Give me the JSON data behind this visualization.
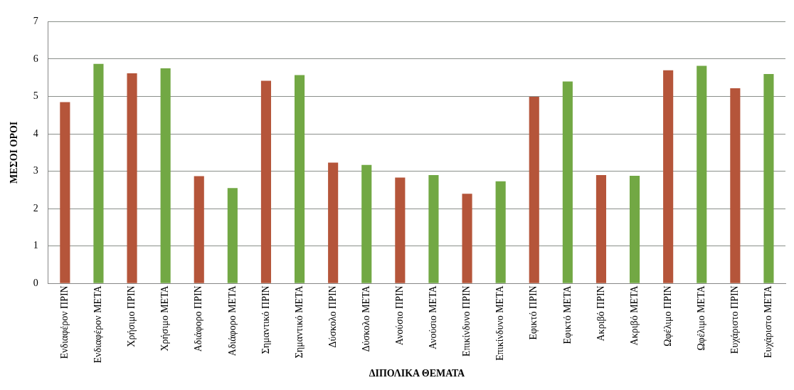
{
  "chart_data": {
    "type": "bar",
    "xlabel": "ΔΙΠΟΛΙΚΑ ΘΕΜΑΤΑ",
    "ylabel": "ΜΕΣΟΙ ΟΡΟΙ",
    "categories": [
      "Ενδιαφέρον ΠΡΙΝ",
      "Ενδιαφέρον ΜΕΤΑ",
      "Χρήσιμο ΠΡΙΝ",
      "Χρήσιμο ΜΕΤΑ",
      "Αδιάφορο ΠΡΙΝ",
      "Αδιάφορο ΜΕΤΑ",
      "Σημαντικό ΠΡΙΝ",
      "Σημαντικό ΜΕΤΑ",
      "Δύσκολο ΠΡΙΝ",
      "Δύσκολο ΜΕΤΑ",
      "Ανούσιο ΠΡΙΝ",
      "Ανούσιο ΜΕΤΑ",
      "Επικίνδυνο ΠΡΙΝ",
      "Επικίνδυνο ΜΕΤΑ",
      "Εφικτό ΠΡΙΝ",
      "Εφικτό ΜΕΤΑ",
      "Ακριβό ΠΡΙΝ",
      "Ακριβό ΜΕΤΑ",
      "Ωφέλιμο ΠΡΙΝ",
      "Ωφέλιμο ΜΕΤΑ",
      "Ευχάριστο ΠΡΙΝ",
      "Ευχάριστο ΜΕΤΑ"
    ],
    "values": [
      4.85,
      5.87,
      5.62,
      5.75,
      2.87,
      2.55,
      5.42,
      5.57,
      3.23,
      3.17,
      2.83,
      2.9,
      2.4,
      2.73,
      4.99,
      5.4,
      2.9,
      2.88,
      5.7,
      5.82,
      5.22,
      5.6
    ],
    "colors": [
      "#b5553a",
      "#72a844",
      "#b5553a",
      "#72a844",
      "#b5553a",
      "#72a844",
      "#b5553a",
      "#72a844",
      "#b5553a",
      "#72a844",
      "#b5553a",
      "#72a844",
      "#b5553a",
      "#72a844",
      "#b5553a",
      "#72a844",
      "#b5553a",
      "#72a844",
      "#b5553a",
      "#72a844",
      "#b5553a",
      "#72a844"
    ],
    "ylim": [
      0,
      7
    ],
    "yticks": [
      0,
      1,
      2,
      3,
      4,
      5,
      6,
      7
    ],
    "grid": "y"
  }
}
